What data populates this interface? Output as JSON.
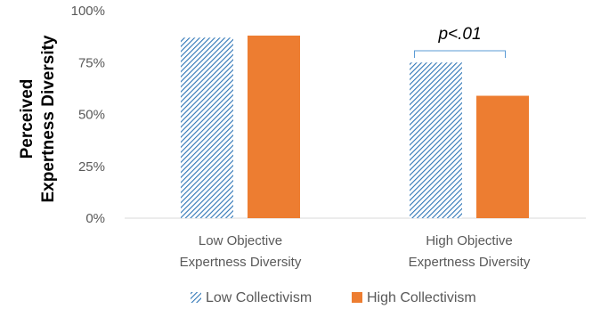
{
  "chart_data": {
    "type": "bar",
    "title": "",
    "ylabel_lines": [
      "Perceived",
      "Expertness Diversity"
    ],
    "xlabel": "",
    "categories": [
      [
        "Low Objective",
        "Expertness Diversity"
      ],
      [
        "High Objective",
        "Expertness Diversity"
      ]
    ],
    "series": [
      {
        "name": "Low Collectivism",
        "values": [
          87,
          75
        ],
        "color": "#5B9BD5",
        "pattern": "diagonal-hatch"
      },
      {
        "name": "High Collectivism",
        "values": [
          88,
          59
        ],
        "color": "#ED7D31",
        "pattern": "solid"
      }
    ],
    "ylim": [
      0,
      100
    ],
    "yticks": [
      "0%",
      "25%",
      "50%",
      "75%",
      "100%"
    ],
    "ytick_values": [
      0,
      25,
      50,
      75,
      100
    ],
    "grid": false,
    "legend_position": "bottom",
    "annotation": {
      "text": "p<.01",
      "category_index": 1,
      "bracket_color": "#5B9BD5"
    }
  }
}
